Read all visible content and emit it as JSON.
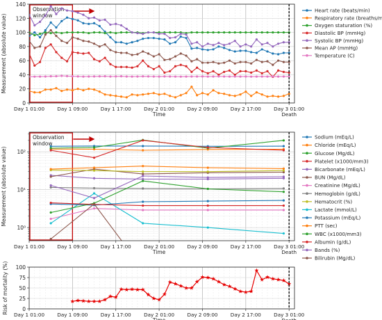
{
  "figure": {
    "time_ticks": [
      "Day 1 01:00",
      "Day 1 09:00",
      "Day 1 17:00",
      "Day 2 01:00",
      "Day 2 09:00",
      "Day 2 17:00",
      "Day 3 01:00"
    ],
    "death_label": "Death",
    "xlabel": "Time",
    "observation_label": [
      "Observation",
      "window"
    ],
    "observation_window_hours": [
      0,
      8
    ],
    "death_hour": 48
  },
  "colors": {
    "blue": "#1f77b4",
    "orange": "#ff7f0e",
    "green": "#2ca02c",
    "red": "#d62728",
    "purple": "#9467bd",
    "brown": "#8c564b",
    "pink": "#e377c2",
    "gray": "#7f7f7f",
    "olive": "#bcbd22",
    "cyan": "#17becf",
    "crimson": "#e60000",
    "obs_box": "#c00000"
  },
  "chart_data": [
    {
      "type": "line",
      "ylabel": "Measurement (absolute value)",
      "xlabel": "Time",
      "ylim": [
        0,
        140
      ],
      "yticks": [
        0,
        20,
        40,
        60,
        80,
        100,
        120,
        140
      ],
      "x_unit": "hours since Day 1 01:00",
      "x": [
        0,
        1,
        2,
        3,
        4,
        5,
        6,
        7,
        8,
        9,
        10,
        11,
        12,
        13,
        14,
        15,
        16,
        17,
        18,
        19,
        20,
        21,
        22,
        23,
        24,
        25,
        26,
        27,
        28,
        29,
        30,
        31,
        32,
        33,
        34,
        35,
        36,
        37,
        38,
        39,
        40,
        41,
        42,
        43,
        44,
        45,
        46,
        47,
        48
      ],
      "series": [
        {
          "name": "Heart rate (beats/min)",
          "color": "#1f77b4",
          "values": [
            95,
            100,
            93,
            103,
            114,
            107,
            116,
            121,
            119,
            117,
            113,
            112,
            113,
            109,
            101,
            93,
            86,
            86,
            84,
            86,
            88,
            91,
            92,
            92,
            91,
            90,
            84,
            86,
            94,
            92,
            77,
            78,
            76,
            75,
            76,
            80,
            78,
            75,
            73,
            74,
            74,
            72,
            71,
            76,
            73,
            70,
            69,
            71,
            71
          ]
        },
        {
          "name": "Respiratory rate (breaths/min)",
          "color": "#ff7f0e",
          "values": [
            17,
            15,
            15,
            19,
            19,
            21,
            17,
            19,
            18,
            20,
            18,
            20,
            19,
            16,
            12,
            11,
            10,
            9,
            8,
            12,
            11,
            12,
            13,
            14,
            12,
            13,
            10,
            8,
            11,
            14,
            23,
            11,
            14,
            12,
            18,
            14,
            13,
            11,
            10,
            12,
            16,
            10,
            15,
            12,
            9,
            10,
            9,
            10,
            13
          ]
        },
        {
          "name": "Oxygen staturation (%)",
          "color": "#2ca02c",
          "values": [
            100,
            96,
            98,
            100,
            99,
            100,
            99,
            100,
            100,
            100,
            100,
            99,
            100,
            100,
            99,
            100,
            99,
            100,
            100,
            100,
            100,
            99,
            100,
            100,
            100,
            100,
            100,
            100,
            100,
            99,
            100,
            100,
            100,
            100,
            100,
            100,
            100,
            100,
            100,
            100,
            100,
            100,
            100,
            100,
            100,
            100,
            100,
            100,
            100
          ]
        },
        {
          "name": "Diastolic BP (mmHg)",
          "color": "#d62728",
          "values": [
            70,
            53,
            58,
            78,
            83,
            72,
            64,
            59,
            72,
            71,
            70,
            71,
            62,
            59,
            64,
            55,
            51,
            51,
            51,
            50,
            52,
            60,
            52,
            48,
            52,
            43,
            45,
            52,
            54,
            52,
            44,
            50,
            45,
            42,
            45,
            40,
            44,
            46,
            40,
            45,
            45,
            43,
            46,
            42,
            45,
            37,
            46,
            44,
            43
          ]
        },
        {
          "name": "Systolic BP (mmHg)",
          "color": "#9467bd",
          "values": [
            125,
            110,
            115,
            124,
            137,
            126,
            134,
            131,
            130,
            128,
            125,
            120,
            121,
            117,
            118,
            111,
            112,
            110,
            105,
            100,
            99,
            98,
            100,
            100,
            98,
            98,
            92,
            93,
            98,
            97,
            84,
            86,
            80,
            84,
            82,
            85,
            82,
            84,
            88,
            80,
            83,
            80,
            90,
            83,
            85,
            80,
            84,
            86,
            86
          ]
        },
        {
          "name": "Mean AP (mmHg)",
          "color": "#8c564b",
          "values": [
            88,
            78,
            80,
            97,
            103,
            95,
            88,
            85,
            93,
            91,
            88,
            87,
            84,
            80,
            83,
            75,
            72,
            71,
            71,
            68,
            69,
            73,
            70,
            66,
            69,
            61,
            62,
            66,
            70,
            67,
            59,
            62,
            57,
            57,
            58,
            56,
            57,
            60,
            56,
            58,
            58,
            56,
            61,
            58,
            59,
            54,
            60,
            58,
            58
          ]
        },
        {
          "name": "Temperature (C)",
          "color": "#e377c2",
          "values": [
            37.2,
            37.3,
            37.4,
            37.5,
            37.8,
            37.9,
            38.5,
            38.1,
            37.8,
            37.6,
            37.4,
            37.5,
            37.6,
            37.7,
            37.8,
            37.5,
            37.6,
            37.8,
            37.5,
            37.4,
            37.5,
            37.7,
            37.6,
            37.5,
            37.4,
            37.6,
            37.5,
            37.4,
            37.3,
            37.4,
            37.5,
            37.5,
            37.6,
            37.4,
            37.5,
            37.6,
            37.5,
            37.4,
            37.5,
            37.4,
            37.5,
            37.3,
            37.4,
            37.5,
            37.4,
            37.6,
            37.4,
            37.5,
            37.5
          ]
        }
      ]
    },
    {
      "type": "line",
      "ylabel": "Measurement (absolute value)",
      "xlabel": "Time",
      "yscale": "log",
      "ylim": [
        0.45,
        330
      ],
      "ytick_labels": [
        "10⁰",
        "10¹",
        "10²"
      ],
      "x_unit": "hours since Day 1 01:00",
      "series": [
        {
          "name": "Sodium (mEq/L)",
          "color": "#1f77b4",
          "x": [
            4,
            12,
            21,
            33,
            47
          ],
          "values": [
            140,
            142,
            142,
            140,
            141
          ]
        },
        {
          "name": "Chloride (mEq/L)",
          "color": "#ff7f0e",
          "x": [
            4,
            12,
            21,
            33,
            47
          ],
          "values": [
            118,
            117,
            110,
            115,
            117
          ]
        },
        {
          "name": "Glucose (Mg/dL)",
          "color": "#2ca02c",
          "x": [
            4,
            12,
            21,
            33,
            47
          ],
          "values": [
            125,
            130,
            205,
            125,
            200
          ]
        },
        {
          "name": "Platelet (x1000/mm3)",
          "color": "#d62728",
          "x": [
            4,
            12,
            21,
            33,
            47
          ],
          "values": [
            110,
            70,
            200,
            130,
            110
          ]
        },
        {
          "name": "Bicarbonate (mEq/L)",
          "color": "#9467bd",
          "x": [
            4,
            12,
            21,
            33,
            47
          ],
          "values": [
            24,
            20,
            19,
            19,
            20
          ]
        },
        {
          "name": "BUN (Mg/dL)",
          "color": "#8c564b",
          "x": [
            4,
            12,
            21,
            33,
            47
          ],
          "values": [
            22,
            35,
            26,
            28,
            29
          ]
        },
        {
          "name": "Creatinine (Mg/dL)",
          "color": "#e377c2",
          "x": [
            4,
            12,
            21,
            33,
            47
          ],
          "values": [
            1.7,
            3.2,
            2.9,
            2.9,
            2.9
          ]
        },
        {
          "name": "Hemoglobin (g/dL)",
          "color": "#7f7f7f",
          "x": [
            4,
            12,
            21,
            33,
            47
          ],
          "values": [
            11.5,
            11,
            10.8,
            10.5,
            10.8
          ]
        },
        {
          "name": "Hematocrit (%)",
          "color": "#bcbd22",
          "x": [
            4,
            12,
            21,
            33,
            47
          ],
          "values": [
            33,
            32,
            30,
            30,
            32
          ]
        },
        {
          "name": "Lactate (mmol/L)",
          "color": "#17becf",
          "x": [
            4,
            12,
            21,
            33,
            47
          ],
          "values": [
            1.3,
            8,
            1.3,
            1,
            0.7
          ]
        },
        {
          "name": "Potassium (mEq/L)",
          "color": "#1f77b4",
          "x": [
            4,
            12,
            21,
            33,
            47
          ],
          "values": [
            4.2,
            3.9,
            4.8,
            5,
            5.2
          ]
        },
        {
          "name": "PTT (sec)",
          "color": "#ff7f0e",
          "x": [
            4,
            12,
            21,
            33,
            47
          ],
          "values": [
            35,
            38,
            42,
            38,
            36
          ]
        },
        {
          "name": "WBC (x1000/mm3)",
          "color": "#2ca02c",
          "x": [
            4,
            12,
            21,
            33,
            47
          ],
          "values": [
            2.5,
            4.4,
            17,
            10.5,
            8.8
          ]
        },
        {
          "name": "Albumin (g/dL)",
          "color": "#d62728",
          "x": [
            4,
            12,
            21,
            33,
            47
          ],
          "values": [
            4.5,
            4.1,
            3.8,
            3.8,
            3.8
          ]
        },
        {
          "name": "Bands (%)",
          "color": "#9467bd",
          "x": [
            4,
            12,
            21,
            33,
            47
          ],
          "values": [
            13,
            6,
            23,
            21,
            22
          ]
        },
        {
          "name": "Bilirubin (Mg/dL)",
          "color": "#8c564b",
          "x": [
            4,
            12,
            18
          ],
          "values": [
            0.5,
            4.2,
            0.3
          ]
        }
      ]
    },
    {
      "type": "line",
      "ylabel": "Risk of mortality (%)",
      "xlabel": "Time",
      "ylim": [
        0,
        100
      ],
      "yticks": [
        0,
        25,
        50,
        75,
        100
      ],
      "x_unit": "hours since Day 1 01:00",
      "series": [
        {
          "name": "Risk of mortality",
          "color": "#d62728",
          "x": [
            8,
            9,
            10,
            11,
            12,
            13,
            14,
            15,
            16,
            17,
            18,
            19,
            20,
            21,
            22,
            23,
            24,
            25,
            26,
            27,
            28,
            29,
            30,
            31,
            32,
            33,
            34,
            35,
            36,
            37,
            38,
            39,
            40,
            41,
            42,
            43,
            44,
            45,
            46,
            47,
            48
          ],
          "values": [
            18,
            20,
            19,
            18,
            18,
            18,
            22,
            30,
            28,
            47,
            46,
            47,
            46,
            46,
            34,
            25,
            22,
            35,
            64,
            60,
            55,
            50,
            50,
            65,
            76,
            75,
            72,
            65,
            58,
            54,
            48,
            42,
            40,
            42,
            92,
            70,
            76,
            72,
            70,
            68,
            60
          ]
        }
      ]
    }
  ]
}
